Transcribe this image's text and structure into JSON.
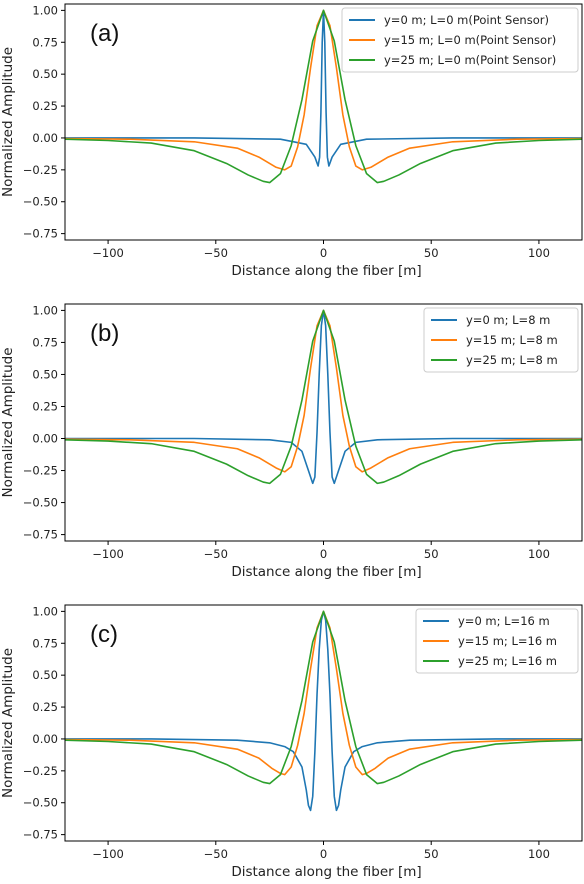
{
  "chart_data": [
    {
      "type": "line",
      "panel_label": "(a)",
      "xlabel": "Distance along the fiber [m]",
      "ylabel": "Normalized Amplitude",
      "xlim": [
        -120,
        120
      ],
      "ylim": [
        -0.8,
        1.05
      ],
      "xticks": [
        -100,
        -50,
        0,
        50,
        100
      ],
      "xtick_labels": [
        "−100",
        "−50",
        "0",
        "50",
        "100"
      ],
      "yticks": [
        1.0,
        0.75,
        0.5,
        0.25,
        0.0,
        -0.25,
        -0.5,
        -0.75
      ],
      "ytick_labels": [
        "1.00",
        "0.75",
        "0.50",
        "0.25",
        "0.00",
        "−0.25",
        "−0.50",
        "−0.75"
      ],
      "legend_position": "top-right",
      "series": [
        {
          "name": "y=0 m; L=0 m(Point Sensor)",
          "color": "#1f77b4",
          "x": [
            -120,
            -60,
            -20,
            -8,
            -4,
            -2.5,
            -1.8,
            -1.2,
            -0.6,
            0,
            0.6,
            1.2,
            1.8,
            2.5,
            4,
            8,
            20,
            60,
            120
          ],
          "y": [
            0.0,
            0.0,
            -0.01,
            -0.05,
            -0.15,
            -0.22,
            -0.15,
            0.2,
            0.75,
            1.0,
            0.75,
            0.2,
            -0.15,
            -0.22,
            -0.15,
            -0.05,
            -0.01,
            0.0,
            0.0
          ]
        },
        {
          "name": "y=15 m; L=0 m(Point Sensor)",
          "color": "#ff7f0e",
          "x": [
            -120,
            -90,
            -60,
            -40,
            -30,
            -22,
            -18,
            -15,
            -12,
            -9,
            -6,
            -3,
            0,
            3,
            6,
            9,
            12,
            15,
            18,
            22,
            30,
            40,
            60,
            90,
            120
          ],
          "y": [
            -0.005,
            -0.01,
            -0.03,
            -0.08,
            -0.15,
            -0.23,
            -0.25,
            -0.22,
            -0.07,
            0.18,
            0.55,
            0.88,
            1.0,
            0.88,
            0.55,
            0.18,
            -0.07,
            -0.22,
            -0.25,
            -0.23,
            -0.15,
            -0.08,
            -0.03,
            -0.01,
            -0.005
          ]
        },
        {
          "name": "y=25 m; L=0 m(Point Sensor)",
          "color": "#2ca02c",
          "x": [
            -120,
            -100,
            -80,
            -60,
            -45,
            -35,
            -28,
            -25,
            -20,
            -15,
            -10,
            -5,
            0,
            5,
            10,
            15,
            20,
            25,
            28,
            35,
            45,
            60,
            80,
            100,
            120
          ],
          "y": [
            -0.01,
            -0.02,
            -0.04,
            -0.1,
            -0.2,
            -0.29,
            -0.34,
            -0.35,
            -0.28,
            -0.06,
            0.3,
            0.76,
            1.0,
            0.76,
            0.3,
            -0.06,
            -0.28,
            -0.35,
            -0.34,
            -0.29,
            -0.2,
            -0.1,
            -0.04,
            -0.02,
            -0.01
          ]
        }
      ]
    },
    {
      "type": "line",
      "panel_label": "(b)",
      "xlabel": "Distance along the fiber [m]",
      "ylabel": "Normalized Amplitude",
      "xlim": [
        -120,
        120
      ],
      "ylim": [
        -0.8,
        1.05
      ],
      "xticks": [
        -100,
        -50,
        0,
        50,
        100
      ],
      "xtick_labels": [
        "−100",
        "−50",
        "0",
        "50",
        "100"
      ],
      "yticks": [
        1.0,
        0.75,
        0.5,
        0.25,
        0.0,
        -0.25,
        -0.5,
        -0.75
      ],
      "ytick_labels": [
        "1.00",
        "0.75",
        "0.50",
        "0.25",
        "0.00",
        "−0.25",
        "−0.50",
        "−0.75"
      ],
      "legend_position": "top-right",
      "series": [
        {
          "name": "y=0 m; L=8 m",
          "color": "#1f77b4",
          "x": [
            -120,
            -60,
            -25,
            -15,
            -10,
            -7,
            -5,
            -4,
            -3,
            -2,
            -1,
            0,
            1,
            2,
            3,
            4,
            5,
            7,
            10,
            15,
            25,
            60,
            120
          ],
          "y": [
            0.0,
            0.0,
            -0.01,
            -0.03,
            -0.1,
            -0.25,
            -0.35,
            -0.3,
            0.05,
            0.5,
            0.88,
            1.0,
            0.88,
            0.5,
            0.05,
            -0.3,
            -0.35,
            -0.25,
            -0.1,
            -0.03,
            -0.01,
            0.0,
            0.0
          ]
        },
        {
          "name": "y=15 m; L=8 m",
          "color": "#ff7f0e",
          "x": [
            -120,
            -90,
            -60,
            -40,
            -30,
            -22,
            -18,
            -15,
            -12,
            -9,
            -6,
            -3,
            0,
            3,
            6,
            9,
            12,
            15,
            18,
            22,
            30,
            40,
            60,
            90,
            120
          ],
          "y": [
            -0.005,
            -0.01,
            -0.03,
            -0.08,
            -0.15,
            -0.23,
            -0.26,
            -0.22,
            -0.06,
            0.18,
            0.55,
            0.88,
            1.0,
            0.88,
            0.55,
            0.18,
            -0.06,
            -0.22,
            -0.26,
            -0.23,
            -0.15,
            -0.08,
            -0.03,
            -0.01,
            -0.005
          ]
        },
        {
          "name": "y=25 m; L=8 m",
          "color": "#2ca02c",
          "x": [
            -120,
            -100,
            -80,
            -60,
            -45,
            -35,
            -28,
            -25,
            -20,
            -15,
            -10,
            -5,
            0,
            5,
            10,
            15,
            20,
            25,
            28,
            35,
            45,
            60,
            80,
            100,
            120
          ],
          "y": [
            -0.01,
            -0.02,
            -0.04,
            -0.1,
            -0.2,
            -0.29,
            -0.34,
            -0.35,
            -0.28,
            -0.06,
            0.3,
            0.76,
            1.0,
            0.76,
            0.3,
            -0.06,
            -0.28,
            -0.35,
            -0.34,
            -0.29,
            -0.2,
            -0.1,
            -0.04,
            -0.02,
            -0.01
          ]
        }
      ]
    },
    {
      "type": "line",
      "panel_label": "(c)",
      "xlabel": "Distance along the fiber [m]",
      "ylabel": "Normalized Amplitude",
      "xlim": [
        -120,
        120
      ],
      "ylim": [
        -0.8,
        1.05
      ],
      "xticks": [
        -100,
        -50,
        0,
        50,
        100
      ],
      "xtick_labels": [
        "−100",
        "−50",
        "0",
        "50",
        "100"
      ],
      "yticks": [
        1.0,
        0.75,
        0.5,
        0.25,
        0.0,
        -0.25,
        -0.5,
        -0.75
      ],
      "ytick_labels": [
        "1.00",
        "0.75",
        "0.50",
        "0.25",
        "0.00",
        "−0.25",
        "−0.50",
        "−0.75"
      ],
      "legend_position": "top-right",
      "series": [
        {
          "name": "y=0 m; L=16 m",
          "color": "#1f77b4",
          "x": [
            -120,
            -80,
            -40,
            -25,
            -18,
            -14,
            -10,
            -8,
            -7,
            -6,
            -5,
            -4,
            -3,
            -2,
            -1,
            0,
            1,
            2,
            3,
            4,
            5,
            6,
            7,
            8,
            10,
            14,
            18,
            25,
            40,
            80,
            120
          ],
          "y": [
            0.0,
            0.0,
            -0.01,
            -0.03,
            -0.06,
            -0.1,
            -0.22,
            -0.4,
            -0.52,
            -0.56,
            -0.45,
            -0.1,
            0.35,
            0.7,
            0.93,
            1.0,
            0.93,
            0.7,
            0.35,
            -0.1,
            -0.45,
            -0.56,
            -0.52,
            -0.4,
            -0.22,
            -0.1,
            -0.06,
            -0.03,
            -0.01,
            0.0,
            0.0
          ]
        },
        {
          "name": "y=15 m; L=16 m",
          "color": "#ff7f0e",
          "x": [
            -120,
            -90,
            -60,
            -40,
            -30,
            -24,
            -20,
            -18,
            -15,
            -12,
            -9,
            -6,
            -3,
            0,
            3,
            6,
            9,
            12,
            15,
            18,
            20,
            24,
            30,
            40,
            60,
            90,
            120
          ],
          "y": [
            -0.005,
            -0.01,
            -0.03,
            -0.08,
            -0.15,
            -0.23,
            -0.27,
            -0.28,
            -0.22,
            -0.05,
            0.2,
            0.55,
            0.87,
            1.0,
            0.87,
            0.55,
            0.2,
            -0.05,
            -0.22,
            -0.28,
            -0.27,
            -0.23,
            -0.15,
            -0.08,
            -0.03,
            -0.01,
            -0.005
          ]
        },
        {
          "name": "y=25 m; L=16 m",
          "color": "#2ca02c",
          "x": [
            -120,
            -100,
            -80,
            -60,
            -45,
            -35,
            -28,
            -25,
            -20,
            -15,
            -10,
            -5,
            0,
            5,
            10,
            15,
            20,
            25,
            28,
            35,
            45,
            60,
            80,
            100,
            120
          ],
          "y": [
            -0.01,
            -0.02,
            -0.04,
            -0.1,
            -0.2,
            -0.29,
            -0.34,
            -0.35,
            -0.28,
            -0.06,
            0.3,
            0.76,
            1.0,
            0.76,
            0.3,
            -0.06,
            -0.28,
            -0.35,
            -0.34,
            -0.29,
            -0.2,
            -0.1,
            -0.04,
            -0.02,
            -0.01
          ]
        }
      ]
    }
  ]
}
